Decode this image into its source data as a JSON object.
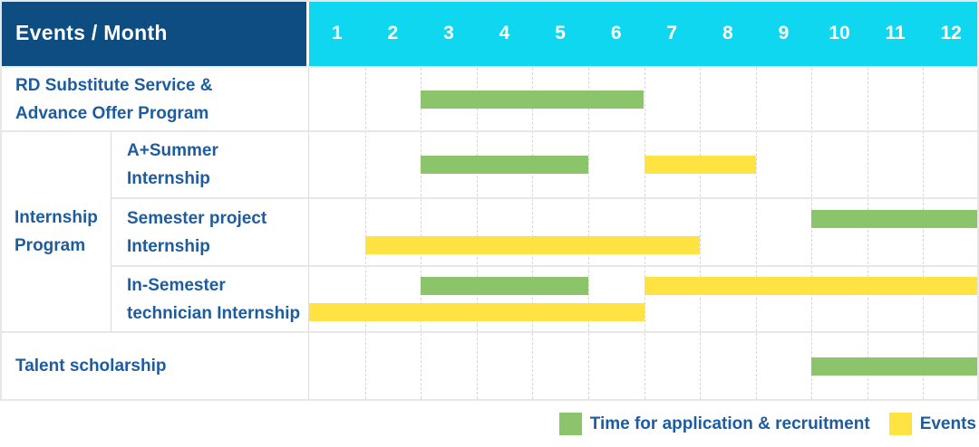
{
  "header": {
    "title": "Events / Month",
    "months": [
      "1",
      "2",
      "3",
      "4",
      "5",
      "6",
      "7",
      "8",
      "9",
      "10",
      "11",
      "12"
    ]
  },
  "legend": {
    "items": [
      {
        "key": "application",
        "label": "Time for application & recruitment",
        "color": "#8BC46A"
      },
      {
        "key": "event",
        "label": "Events",
        "color": "#FFE342"
      }
    ]
  },
  "colors": {
    "header_bg": "#0E4D82",
    "months_bg": "#10D7F0",
    "header_text": "#FFFFFF",
    "label_text": "#1D5C9F",
    "application": "#8BC46A",
    "event": "#FFE342",
    "grid_line_dashed": "#D6D6D6",
    "row_border": "#E7E7E7"
  },
  "chart_data": {
    "type": "bar",
    "subtype": "gantt-schedule",
    "title": "Events / Month",
    "xlabel": "Month",
    "x_ticks": [
      1,
      2,
      3,
      4,
      5,
      6,
      7,
      8,
      9,
      10,
      11,
      12
    ],
    "x_range": [
      1,
      12
    ],
    "grid": "vertical-dashed",
    "legend_position": "bottom-right",
    "legend": [
      "Time for application & recruitment",
      "Events"
    ],
    "rows": [
      {
        "group": "",
        "label": "RD Substitute Service & Advance Offer Program",
        "label_lines": [
          "RD Substitute Service &",
          "Advance Offer Program"
        ],
        "lines": 1,
        "bars": [
          {
            "type": "application",
            "from_month": 3,
            "to_month": 6,
            "line": 1
          }
        ]
      },
      {
        "group": "Internship Program",
        "label": "A+Summer Internship",
        "label_lines": [
          "A+Summer",
          "Internship"
        ],
        "lines": 1,
        "bars": [
          {
            "type": "application",
            "from_month": 3,
            "to_month": 5,
            "line": 1
          },
          {
            "type": "event",
            "from_month": 7,
            "to_month": 8,
            "line": 1
          }
        ]
      },
      {
        "group": "Internship Program",
        "label": "Semester project Internship",
        "label_lines": [
          "Semester project",
          "Internship"
        ],
        "lines": 2,
        "bars": [
          {
            "type": "application",
            "from_month": 10,
            "to_month": 12,
            "line": 1
          },
          {
            "type": "event",
            "from_month": 2,
            "to_month": 7,
            "line": 2
          }
        ]
      },
      {
        "group": "Internship Program",
        "label": "In-Semester technician Internship",
        "label_lines": [
          "In-Semester",
          "technician Internship"
        ],
        "lines": 2,
        "bars": [
          {
            "type": "application",
            "from_month": 3,
            "to_month": 5,
            "line": 1
          },
          {
            "type": "event",
            "from_month": 7,
            "to_month": 12,
            "line": 1
          },
          {
            "type": "event",
            "from_month": 1,
            "to_month": 6,
            "line": 2
          }
        ]
      },
      {
        "group": "",
        "label": "Talent scholarship",
        "label_lines": [
          "Talent scholarship"
        ],
        "lines": 1,
        "bars": [
          {
            "type": "application",
            "from_month": 10,
            "to_month": 12,
            "line": 1
          }
        ]
      }
    ],
    "group_label_lines": [
      "Internship",
      "Program"
    ]
  }
}
